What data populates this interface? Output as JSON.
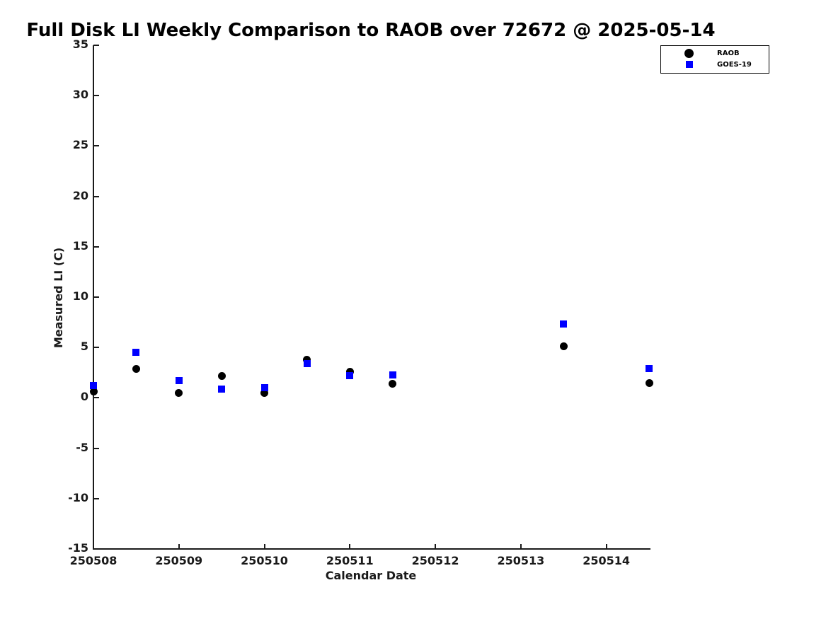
{
  "chart_data": {
    "type": "scatter",
    "title": "Full Disk LI Weekly Comparison to RAOB over 72672 @ 2025-05-14",
    "xlabel": "Calendar Date",
    "ylabel": "Measured LI (C)",
    "xlim": [
      250508,
      250514.5
    ],
    "ylim": [
      -15,
      35
    ],
    "x_ticks": [
      250508,
      250509,
      250510,
      250511,
      250512,
      250513,
      250514
    ],
    "y_ticks": [
      -15,
      -10,
      -5,
      0,
      5,
      10,
      15,
      20,
      25,
      30,
      35
    ],
    "grid": false,
    "axis_color": "#1a1a1a",
    "legend": {
      "position": "top-right",
      "entries": [
        "RAOB",
        "GOES-19"
      ]
    },
    "series": [
      {
        "name": "RAOB",
        "marker": "circle",
        "color": "#000000",
        "x": [
          250508.0,
          250508.5,
          250509.0,
          250509.5,
          250510.0,
          250510.5,
          250511.0,
          250511.5,
          250513.5,
          250514.5
        ],
        "y": [
          0.6,
          2.9,
          0.5,
          2.2,
          0.5,
          3.8,
          2.6,
          1.4,
          5.1,
          1.5
        ]
      },
      {
        "name": "GOES-19",
        "marker": "square",
        "color": "#0000ff",
        "x": [
          250508.0,
          250508.5,
          250509.0,
          250509.5,
          250510.0,
          250510.5,
          250511.0,
          250511.5,
          250513.5,
          250514.5
        ],
        "y": [
          1.2,
          4.5,
          1.7,
          0.9,
          1.0,
          3.4,
          2.2,
          2.3,
          7.3,
          2.9
        ]
      }
    ]
  }
}
